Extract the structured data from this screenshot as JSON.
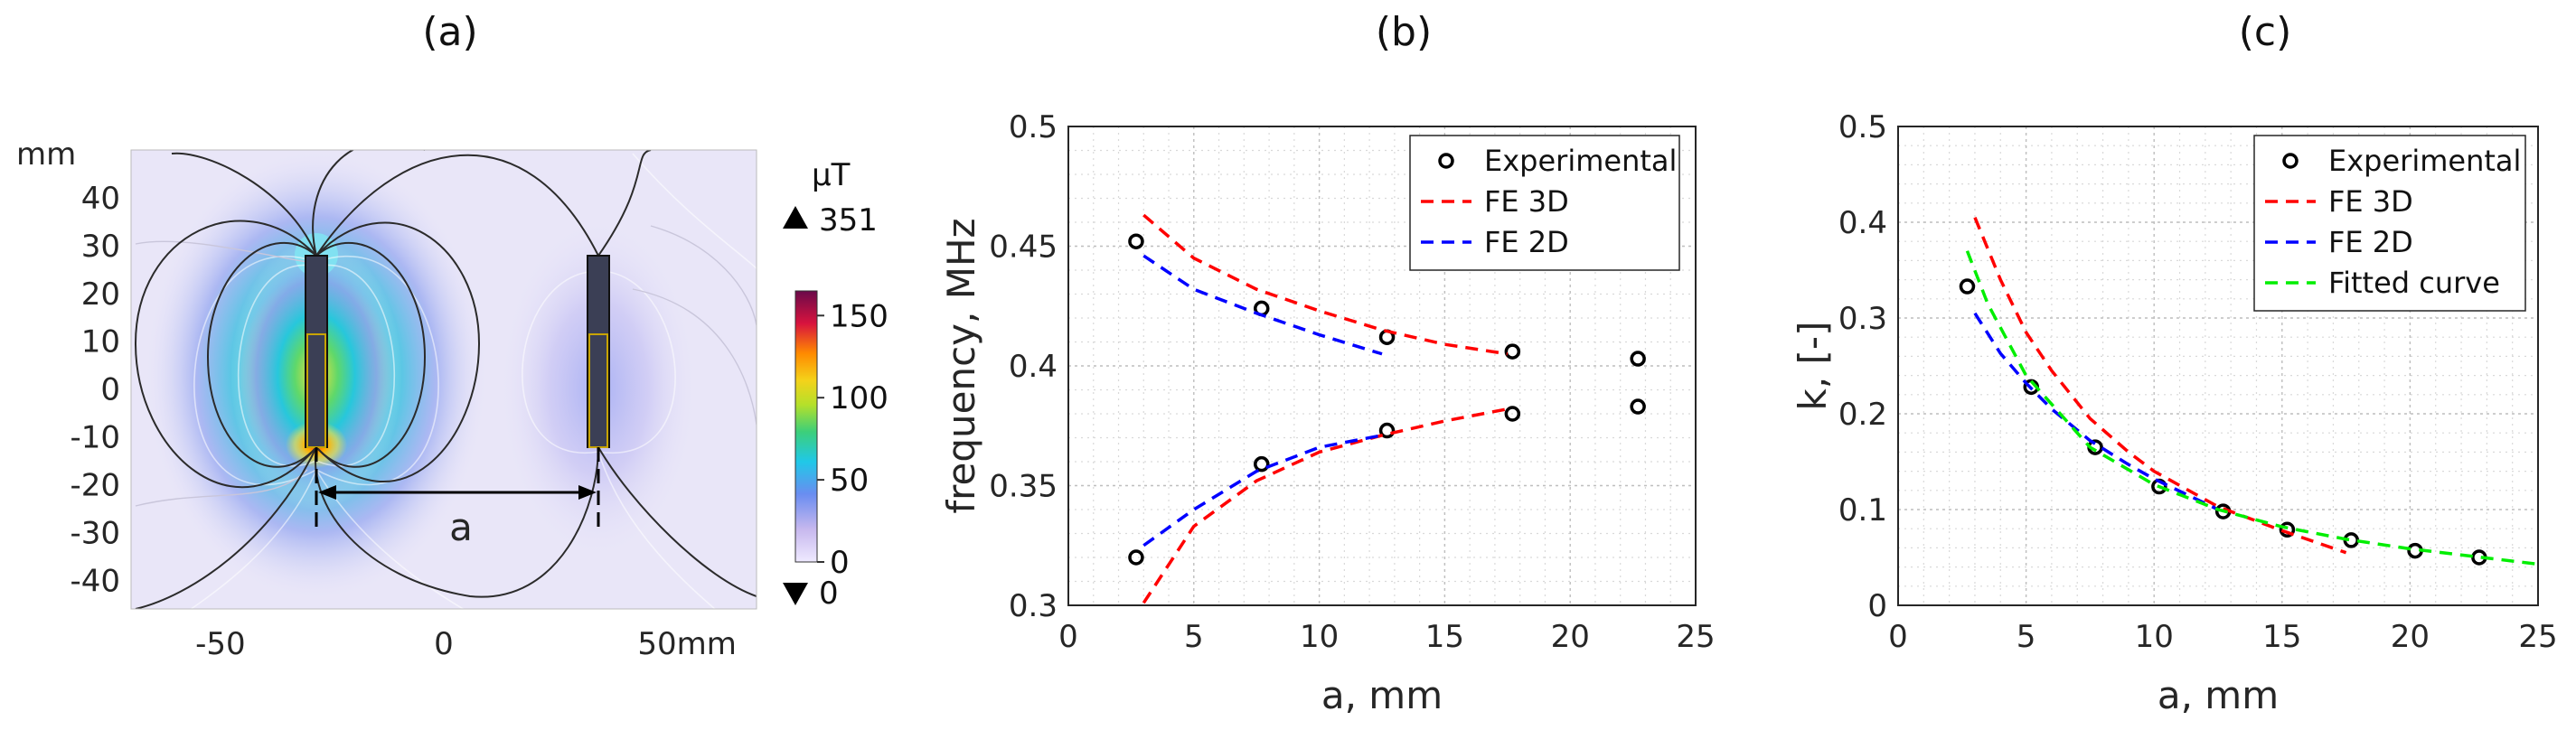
{
  "chart_data": [
    {
      "panel": "(a)",
      "type": "heatmap",
      "x_unit_label": "mm",
      "y_unit_label": "mm",
      "xlim": [
        -70,
        70
      ],
      "ylim": [
        -46,
        50
      ],
      "x_ticks": [
        "-50",
        "0",
        "50mm"
      ],
      "x_tick_values": [
        -50,
        0,
        50
      ],
      "y_ticks": [
        "40",
        "30",
        "20",
        "10",
        "0",
        "-10",
        "-20",
        "-30",
        "-40"
      ],
      "y_tick_values": [
        40,
        30,
        20,
        10,
        0,
        -10,
        -20,
        -30,
        -40
      ],
      "annotation": "a",
      "colorbar": {
        "unit": "µT",
        "max_label": "351",
        "min_label": "0",
        "ticks": [
          "150",
          "100",
          "50",
          "0"
        ],
        "tick_values": [
          150,
          100,
          50,
          0
        ],
        "range": [
          0,
          165
        ]
      },
      "colors": {
        "background": "#e9e6f8",
        "rod": "#3b3f55",
        "coil": "#c8a400"
      }
    },
    {
      "panel": "(b)",
      "type": "line",
      "xlabel": "a, mm",
      "ylabel": "frequency, MHz",
      "xlim": [
        0,
        25
      ],
      "ylim": [
        0.3,
        0.5
      ],
      "x_ticks": [
        "0",
        "5",
        "10",
        "15",
        "20",
        "25"
      ],
      "y_ticks": [
        "0.3",
        "0.35",
        "0.4",
        "0.45",
        "0.5"
      ],
      "legend": [
        "Experimental",
        "FE 3D",
        "FE 2D"
      ],
      "series": [
        {
          "name": "Experimental",
          "style": "marker",
          "color": "#000000",
          "x": [
            2.7,
            7.7,
            12.7,
            17.7,
            22.7,
            2.7,
            7.7,
            12.7,
            17.7,
            22.7
          ],
          "y": [
            0.452,
            0.424,
            0.412,
            0.406,
            0.403,
            0.32,
            0.359,
            0.373,
            0.38,
            0.383
          ]
        },
        {
          "name": "FE 3D",
          "style": "dashed",
          "color": "#ff0000",
          "x": [
            3,
            5,
            7.5,
            10,
            12.5,
            15,
            17.5
          ],
          "y": [
            0.463,
            0.445,
            0.432,
            0.423,
            0.415,
            0.409,
            0.405
          ]
        },
        {
          "name": "FE 3D",
          "style": "dashed",
          "color": "#ff0000",
          "x": [
            3,
            5,
            7.5,
            10,
            12.5,
            15,
            17.5
          ],
          "y": [
            0.301,
            0.333,
            0.352,
            0.364,
            0.371,
            0.377,
            0.382
          ]
        },
        {
          "name": "FE 2D",
          "style": "dashed",
          "color": "#0000ff",
          "x": [
            3,
            5,
            7.5,
            10,
            12.5
          ],
          "y": [
            0.446,
            0.432,
            0.422,
            0.413,
            0.405
          ]
        },
        {
          "name": "FE 2D",
          "style": "dashed",
          "color": "#0000ff",
          "x": [
            3,
            5,
            7.5,
            10,
            12.5
          ],
          "y": [
            0.325,
            0.34,
            0.356,
            0.366,
            0.371
          ]
        }
      ]
    },
    {
      "panel": "(c)",
      "type": "line",
      "xlabel": "a, mm",
      "ylabel": "k, [-]",
      "xlim": [
        0,
        25
      ],
      "ylim": [
        0,
        0.5
      ],
      "x_ticks": [
        "0",
        "5",
        "10",
        "15",
        "20",
        "25"
      ],
      "y_ticks": [
        "0",
        "0.1",
        "0.2",
        "0.3",
        "0.4",
        "0.5"
      ],
      "legend": [
        "Experimental",
        "FE 3D",
        "FE 2D",
        "Fitted curve"
      ],
      "series": [
        {
          "name": "Experimental",
          "style": "marker",
          "color": "#000000",
          "x": [
            2.7,
            5.2,
            7.7,
            10.2,
            12.7,
            15.2,
            17.7,
            20.2,
            22.7
          ],
          "y": [
            0.333,
            0.228,
            0.165,
            0.124,
            0.098,
            0.079,
            0.068,
            0.057,
            0.05
          ]
        },
        {
          "name": "FE 3D",
          "style": "dashed",
          "color": "#ff0000",
          "x": [
            3,
            4,
            5,
            6,
            7.5,
            9,
            10,
            12.5,
            15,
            17.5
          ],
          "y": [
            0.405,
            0.34,
            0.285,
            0.245,
            0.195,
            0.16,
            0.14,
            0.103,
            0.078,
            0.055
          ]
        },
        {
          "name": "FE 2D",
          "style": "dashed",
          "color": "#0000ff",
          "x": [
            3,
            4,
            5,
            6,
            7.5,
            9,
            10,
            12.5
          ],
          "y": [
            0.305,
            0.263,
            0.232,
            0.205,
            0.172,
            0.147,
            0.132,
            0.1
          ]
        },
        {
          "name": "Fitted curve",
          "style": "dashed",
          "color": "#00ee00",
          "x": [
            2.7,
            3.5,
            5,
            7.5,
            10,
            12.5,
            15,
            17.5,
            20,
            22.5,
            25
          ],
          "y": [
            0.37,
            0.315,
            0.24,
            0.165,
            0.126,
            0.1,
            0.082,
            0.069,
            0.059,
            0.051,
            0.043
          ]
        }
      ]
    }
  ]
}
